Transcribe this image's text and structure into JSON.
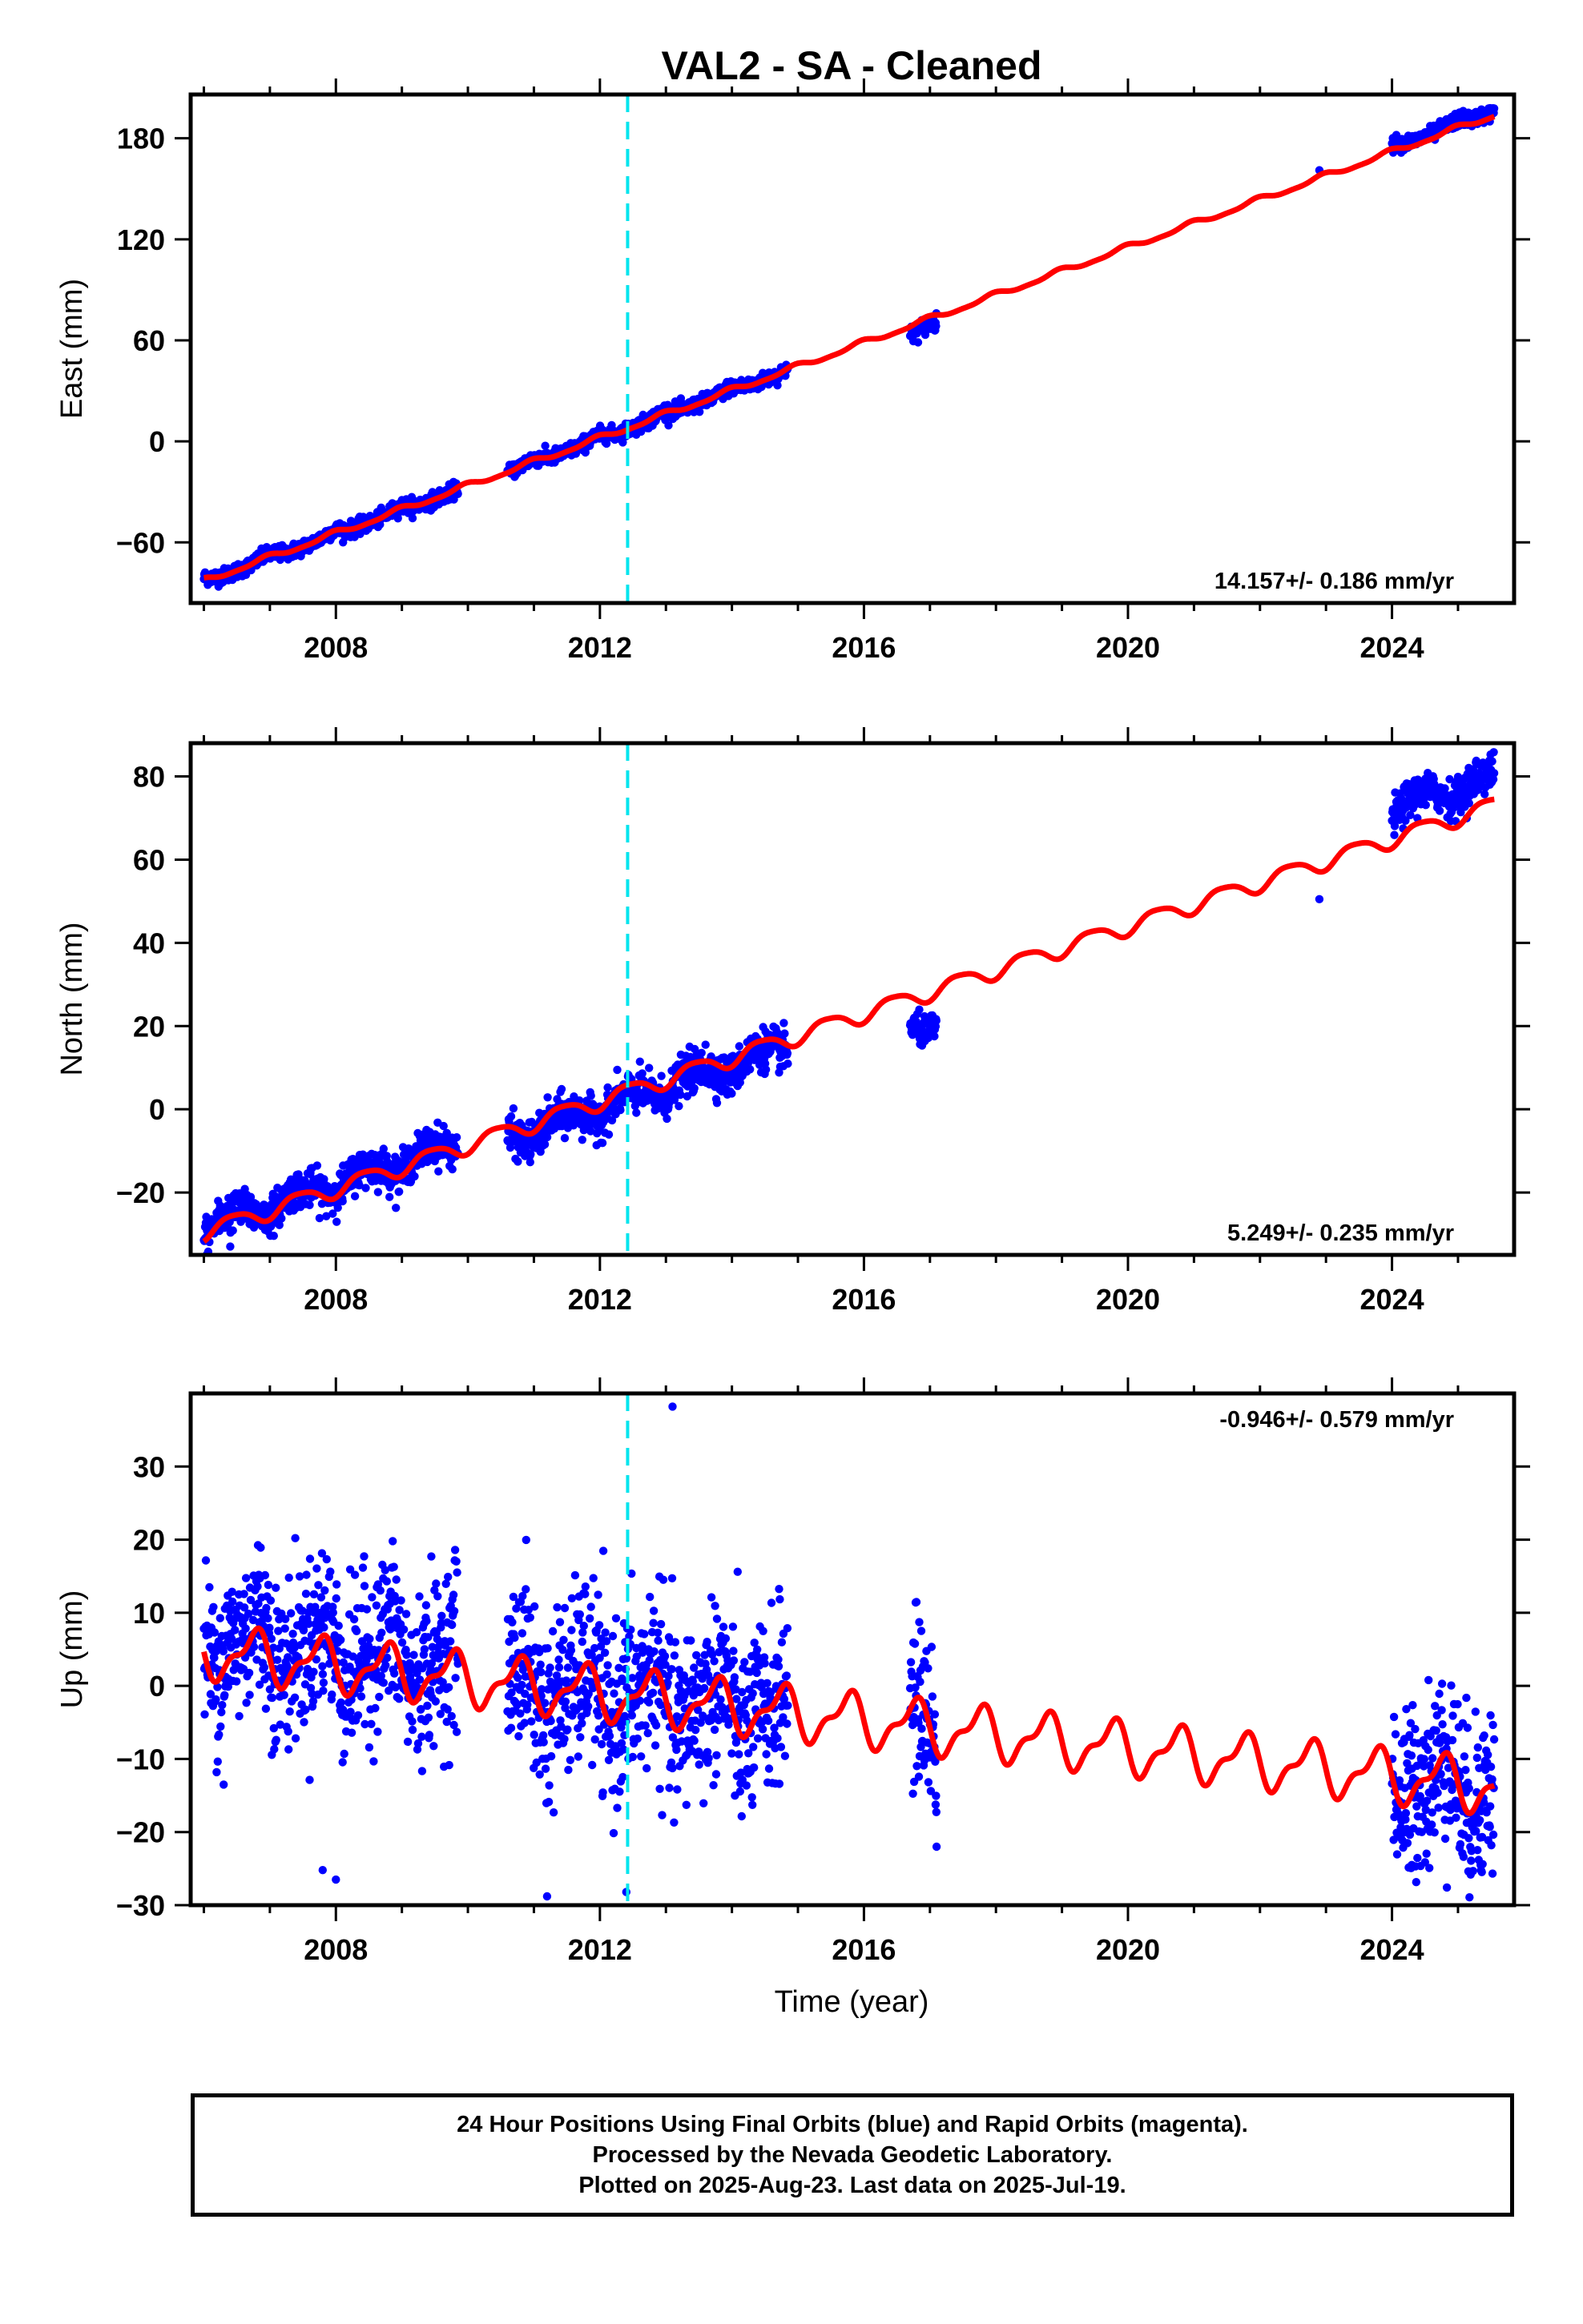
{
  "title": "VAL2  - SA - Cleaned",
  "xlabel": "Time (year)",
  "x_ticks": [
    2008,
    2012,
    2016,
    2020,
    2024
  ],
  "x_range": [
    2005.8,
    2025.85
  ],
  "colors": {
    "data": "#0000ff",
    "model": "#ff0000",
    "offset_line": "#00e5ee",
    "frame": "#000000"
  },
  "offset_epoch": 2012.42,
  "footer": {
    "line1": "24 Hour Positions Using Final Orbits (blue) and Rapid Orbits (magenta).",
    "line2": "Processed by the Nevada Geodetic Laboratory.",
    "line3": "Plotted on 2025-Aug-23. Last data on 2025-Jul-19."
  },
  "chart_data": [
    {
      "type": "scatter",
      "component": "east",
      "ylabel": "East (mm)",
      "ylim": [
        -96,
        206
      ],
      "y_ticks": [
        -60,
        0,
        60,
        120,
        180
      ],
      "rate_text": "14.157+/- 0.186 mm/yr",
      "rate_position": "bottom-right",
      "model": {
        "rate": 14.157,
        "ref_year": 2012,
        "ref_value": 2,
        "annual_amp": 1.5,
        "semiannual_amp": 0.5,
        "phase": 0.3
      },
      "data_segments": [
        {
          "start": 2006.0,
          "end": 2009.85,
          "offset": 0,
          "noise": 2.2
        },
        {
          "start": 2010.6,
          "end": 2014.85,
          "offset": 0,
          "noise": 2.2
        },
        {
          "start": 2016.7,
          "end": 2017.1,
          "offset": -5,
          "noise": 2.5
        },
        {
          "start": 2024.0,
          "end": 2025.55,
          "offset": 3,
          "noise": 2.2
        }
      ],
      "outliers": [
        [
          2022.9,
          161
        ]
      ]
    },
    {
      "type": "scatter",
      "component": "north",
      "ylabel": "North (mm)",
      "ylim": [
        -35,
        88
      ],
      "y_ticks": [
        -20,
        0,
        20,
        40,
        60,
        80
      ],
      "rate_text": "5.249+/- 0.235 mm/yr",
      "rate_position": "bottom-right",
      "model": {
        "rate": 5.249,
        "ref_year": 2012,
        "ref_value": 2,
        "annual_amp": 2.0,
        "semiannual_amp": 0.4,
        "phase": 0.8
      },
      "data_segments": [
        {
          "start": 2006.0,
          "end": 2009.85,
          "offset": 1,
          "noise": 2.2
        },
        {
          "start": 2010.6,
          "end": 2014.85,
          "offset": -2,
          "noise": 2.4
        },
        {
          "start": 2016.7,
          "end": 2017.1,
          "offset": -7,
          "noise": 1.8
        },
        {
          "start": 2024.0,
          "end": 2025.55,
          "offset": 7,
          "noise": 2.2
        }
      ],
      "outliers": [
        [
          2022.9,
          50.5
        ],
        [
          2013.6,
          15.5
        ],
        [
          2006.4,
          -33
        ]
      ]
    },
    {
      "type": "scatter",
      "component": "up",
      "ylabel": "Up (mm)",
      "ylim": [
        -30,
        40
      ],
      "y_ticks": [
        -30,
        -20,
        -10,
        0,
        10,
        20,
        30
      ],
      "rate_text": "-0.946+/- 0.579 mm/yr",
      "rate_position": "top-right",
      "model": {
        "rate": -0.946,
        "ref_year": 2012,
        "ref_value": -1,
        "annual_amp": 3.2,
        "semiannual_amp": 1.4,
        "phase": 0.5
      },
      "data_segments": [
        {
          "start": 2006.0,
          "end": 2009.85,
          "offset": 2,
          "noise": 5.5
        },
        {
          "start": 2010.6,
          "end": 2014.85,
          "offset": 0,
          "noise": 6.0
        },
        {
          "start": 2016.7,
          "end": 2017.1,
          "offset": 0,
          "noise": 5.5
        },
        {
          "start": 2024.0,
          "end": 2025.55,
          "offset": 0,
          "noise": 6.0
        }
      ],
      "outliers": [
        [
          2013.1,
          38.2
        ],
        [
          2012.4,
          -28.2
        ],
        [
          2011.2,
          -28.8
        ],
        [
          2007.8,
          -25.2
        ],
        [
          2008.0,
          -26.5
        ],
        [
          2024.3,
          -24.5
        ],
        [
          2006.3,
          -13.5
        ],
        [
          2017.1,
          -22
        ]
      ]
    }
  ]
}
